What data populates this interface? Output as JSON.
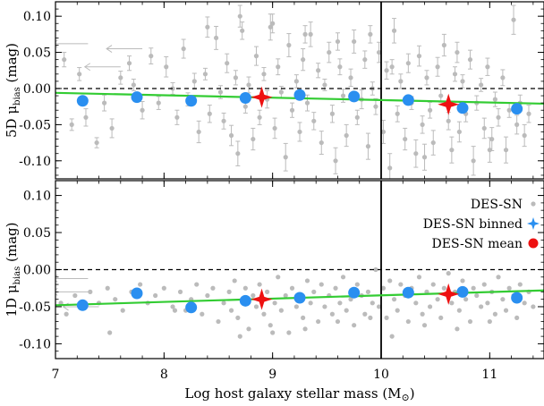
{
  "chart_data": {
    "type": "scatter",
    "xlabel": "Log host galaxy stellar mass (M",
    "xlabel_symbol": "⊙",
    "xlabel_close": ")",
    "xlim": [
      7,
      11.5
    ],
    "xticks": [
      7,
      8,
      9,
      10,
      11
    ],
    "mass_step": 10,
    "colors": {
      "points": "#bbbbbb",
      "binned": "#2a8ff0",
      "mean": "#ee1111",
      "fit": "#33cc33"
    },
    "legend": {
      "location": "right",
      "entries": [
        {
          "label": "DES-SN",
          "marker": "dot"
        },
        {
          "label": "DES-SN binned",
          "marker": "star4-blue"
        },
        {
          "label": "DES-SN mean",
          "marker": "circle-red"
        }
      ]
    },
    "panels": [
      {
        "id": "5D",
        "ylabel_main": "5D μ",
        "ylabel_sub": "bias",
        "ylabel_unit": " (mag)",
        "ylim": [
          -0.125,
          0.12
        ],
        "yticks": [
          0.1,
          0.05,
          0.0,
          -0.05,
          -0.1
        ],
        "ytick_labels": [
          "0.10",
          "0.05",
          "0.00",
          "-0.05",
          "-0.10"
        ],
        "fit_line": {
          "x": [
            7,
            11.5
          ],
          "y": [
            -0.006,
            -0.021
          ]
        },
        "binned": {
          "x": [
            7.25,
            7.75,
            8.25,
            8.75,
            9.25,
            9.75,
            10.25,
            10.75,
            11.25
          ],
          "y": [
            -0.017,
            -0.012,
            -0.017,
            -0.013,
            -0.009,
            -0.011,
            -0.016,
            -0.027,
            -0.028
          ]
        },
        "mean": {
          "x": [
            8.9,
            10.62
          ],
          "y": [
            -0.012,
            -0.022
          ]
        },
        "scatter": {
          "x": [
            7.08,
            7.15,
            7.22,
            7.28,
            7.38,
            7.45,
            7.52,
            7.6,
            7.68,
            7.72,
            7.8,
            7.88,
            7.95,
            8.02,
            8.08,
            8.12,
            8.18,
            8.22,
            8.28,
            8.32,
            8.38,
            8.42,
            8.48,
            8.52,
            8.55,
            8.58,
            8.62,
            8.66,
            8.68,
            8.72,
            8.75,
            8.78,
            8.82,
            8.85,
            8.88,
            8.92,
            8.95,
            8.98,
            9.02,
            9.05,
            9.08,
            9.12,
            9.15,
            9.18,
            9.22,
            9.25,
            9.28,
            9.32,
            9.35,
            9.38,
            9.42,
            9.45,
            9.48,
            9.52,
            9.55,
            9.58,
            9.62,
            9.65,
            9.68,
            9.72,
            9.75,
            9.78,
            9.82,
            9.85,
            9.88,
            9.92,
            9.95,
            9.98,
            10.02,
            10.05,
            10.08,
            10.12,
            10.15,
            10.18,
            10.22,
            10.25,
            10.28,
            10.32,
            10.35,
            10.38,
            10.42,
            10.45,
            10.48,
            10.52,
            10.55,
            10.58,
            10.62,
            10.65,
            10.68,
            10.72,
            10.75,
            10.78,
            10.82,
            10.85,
            10.88,
            10.92,
            10.95,
            10.98,
            11.02,
            11.05,
            11.08,
            11.12,
            11.15,
            11.18,
            11.22,
            11.25,
            11.28,
            11.32,
            11.36,
            8.4,
            8.7,
            9.0,
            9.3,
            9.6,
            9.9,
            10.1,
            10.4,
            10.7,
            11.0
          ],
          "y": [
            0.04,
            -0.05,
            0.02,
            -0.04,
            -0.075,
            -0.02,
            -0.055,
            0.015,
            0.035,
            0.005,
            -0.03,
            0.045,
            -0.02,
            0.03,
            0.0,
            -0.04,
            0.055,
            -0.015,
            0.01,
            -0.06,
            0.02,
            -0.035,
            0.07,
            -0.005,
            -0.045,
            0.035,
            -0.065,
            0.015,
            -0.09,
            0.08,
            -0.025,
            0.005,
            -0.07,
            0.045,
            -0.04,
            0.02,
            -0.015,
            0.085,
            -0.055,
            0.03,
            -0.005,
            -0.095,
            0.06,
            -0.03,
            0.01,
            -0.06,
            0.04,
            -0.02,
            0.075,
            -0.045,
            0.025,
            -0.075,
            0.005,
            0.05,
            -0.035,
            -0.1,
            0.03,
            -0.01,
            -0.065,
            0.015,
            0.065,
            -0.04,
            -0.015,
            0.04,
            -0.08,
            0.0,
            -0.025,
            0.05,
            -0.06,
            0.025,
            -0.11,
            0.08,
            -0.035,
            0.01,
            -0.07,
            0.035,
            -0.02,
            -0.09,
            0.045,
            -0.05,
            0.015,
            -0.03,
            -0.075,
            0.03,
            -0.01,
            0.06,
            -0.045,
            -0.085,
            0.02,
            -0.06,
            0.01,
            -0.035,
            0.04,
            -0.1,
            -0.02,
            0.005,
            -0.055,
            0.03,
            -0.07,
            -0.015,
            -0.04,
            0.015,
            -0.085,
            -0.03,
            0.095,
            -0.05,
            -0.02,
            -0.065,
            -0.035,
            0.085,
            0.1,
            0.09,
            0.075,
            0.065,
            0.075,
            0.03,
            -0.095,
            0.05,
            -0.085
          ],
          "err": [
            0.01,
            0.008,
            0.009,
            0.012,
            0.007,
            0.011,
            0.013,
            0.009,
            0.01,
            0.008,
            0.012,
            0.011,
            0.009,
            0.014,
            0.008,
            0.01,
            0.013,
            0.009,
            0.011,
            0.015,
            0.008,
            0.012,
            0.016,
            0.009,
            0.011,
            0.013,
            0.014,
            0.01,
            0.017,
            0.012,
            0.009,
            0.011,
            0.015,
            0.013,
            0.01,
            0.009,
            0.012,
            0.018,
            0.014,
            0.011,
            0.008,
            0.019,
            0.016,
            0.01,
            0.009,
            0.013,
            0.015,
            0.011,
            0.017,
            0.012,
            0.01,
            0.016,
            0.008,
            0.014,
            0.012,
            0.018,
            0.011,
            0.009,
            0.015,
            0.012,
            0.016,
            0.01,
            0.013,
            0.012,
            0.018,
            0.009,
            0.011,
            0.014,
            0.016,
            0.012,
            0.02,
            0.017,
            0.011,
            0.01,
            0.015,
            0.013,
            0.009,
            0.019,
            0.014,
            0.012,
            0.01,
            0.011,
            0.017,
            0.013,
            0.009,
            0.015,
            0.012,
            0.018,
            0.01,
            0.014,
            0.009,
            0.011,
            0.013,
            0.02,
            0.01,
            0.009,
            0.014,
            0.012,
            0.016,
            0.01,
            0.012,
            0.011,
            0.018,
            0.01,
            0.02,
            0.013,
            0.011,
            0.015,
            0.012,
            0.014,
            0.015,
            0.013,
            0.012,
            0.012,
            0.012,
            0.01,
            0.018,
            0.014,
            0.017
          ],
          "upper_limits": [
            {
              "x": 7.8,
              "y": 0.055
            },
            {
              "x": 7.6,
              "y": 0.03
            },
            {
              "x": 7.3,
              "y": 0.062
            }
          ]
        }
      },
      {
        "id": "1D",
        "ylabel_main": "1D μ",
        "ylabel_sub": "bias",
        "ylabel_unit": " (mag)",
        "ylim": [
          -0.12,
          0.12
        ],
        "yticks": [
          0.1,
          0.05,
          0.0,
          -0.05,
          -0.1
        ],
        "ytick_labels": [
          "0.10",
          "0.05",
          "0.00",
          "-0.05",
          "-0.10"
        ],
        "fit_line": {
          "x": [
            7,
            11.5
          ],
          "y": [
            -0.048,
            -0.028
          ]
        },
        "binned": {
          "x": [
            7.25,
            7.75,
            8.25,
            8.75,
            9.25,
            9.75,
            10.25,
            10.75,
            11.25
          ],
          "y": [
            -0.048,
            -0.032,
            -0.051,
            -0.042,
            -0.038,
            -0.031,
            -0.031,
            -0.03,
            -0.038
          ]
        },
        "mean": {
          "x": [
            8.9,
            10.62
          ],
          "y": [
            -0.04,
            -0.033
          ]
        },
        "scatter": {
          "x": [
            7.05,
            7.1,
            7.18,
            7.25,
            7.32,
            7.4,
            7.48,
            7.55,
            7.62,
            7.7,
            7.78,
            7.85,
            7.92,
            8.0,
            8.08,
            8.15,
            8.2,
            8.25,
            8.3,
            8.35,
            8.4,
            8.45,
            8.5,
            8.55,
            8.6,
            8.62,
            8.65,
            8.68,
            8.72,
            8.75,
            8.78,
            8.82,
            8.85,
            8.88,
            8.92,
            8.95,
            8.98,
            9.02,
            9.05,
            9.08,
            9.12,
            9.15,
            9.18,
            9.22,
            9.25,
            9.28,
            9.32,
            9.35,
            9.38,
            9.42,
            9.45,
            9.48,
            9.52,
            9.55,
            9.58,
            9.62,
            9.65,
            9.68,
            9.72,
            9.75,
            9.78,
            9.82,
            9.85,
            9.88,
            9.92,
            9.95,
            9.98,
            10.02,
            10.05,
            10.08,
            10.12,
            10.15,
            10.18,
            10.22,
            10.25,
            10.28,
            10.32,
            10.35,
            10.38,
            10.42,
            10.45,
            10.48,
            10.52,
            10.55,
            10.58,
            10.62,
            10.65,
            10.68,
            10.72,
            10.75,
            10.78,
            10.82,
            10.85,
            10.88,
            10.92,
            10.95,
            10.98,
            11.02,
            11.05,
            11.08,
            11.12,
            11.15,
            11.18,
            11.22,
            11.25,
            11.28,
            11.32,
            11.36,
            11.4,
            8.7,
            9.0,
            9.3,
            9.6,
            9.9,
            10.1,
            10.4,
            10.7,
            11.0,
            7.5,
            8.1
          ],
          "y": [
            -0.045,
            -0.06,
            -0.035,
            -0.05,
            -0.03,
            -0.045,
            -0.025,
            -0.04,
            -0.055,
            -0.03,
            -0.02,
            -0.045,
            -0.035,
            -0.025,
            -0.05,
            -0.03,
            -0.055,
            -0.04,
            -0.02,
            -0.06,
            -0.035,
            -0.025,
            -0.07,
            -0.045,
            -0.03,
            -0.055,
            -0.015,
            -0.065,
            -0.04,
            -0.025,
            -0.08,
            -0.035,
            -0.05,
            -0.02,
            -0.06,
            -0.03,
            -0.075,
            -0.045,
            -0.01,
            -0.055,
            -0.035,
            -0.085,
            -0.025,
            -0.05,
            -0.04,
            -0.065,
            -0.015,
            -0.045,
            -0.03,
            -0.07,
            -0.02,
            -0.05,
            -0.035,
            -0.06,
            -0.025,
            -0.045,
            -0.01,
            -0.055,
            -0.04,
            -0.075,
            -0.02,
            -0.035,
            -0.06,
            -0.03,
            -0.045,
            0.0,
            -0.05,
            -0.025,
            -0.065,
            -0.015,
            -0.04,
            -0.055,
            -0.02,
            -0.035,
            -0.07,
            -0.025,
            -0.045,
            -0.01,
            -0.06,
            -0.03,
            -0.05,
            -0.02,
            -0.04,
            -0.065,
            -0.025,
            -0.005,
            -0.045,
            -0.03,
            -0.055,
            -0.015,
            -0.04,
            -0.07,
            -0.025,
            -0.035,
            -0.05,
            -0.02,
            -0.045,
            -0.03,
            -0.06,
            -0.01,
            -0.04,
            -0.055,
            -0.025,
            -0.035,
            -0.065,
            -0.02,
            -0.045,
            -0.03,
            -0.05,
            -0.09,
            -0.085,
            -0.08,
            -0.07,
            -0.065,
            -0.09,
            -0.075,
            -0.08,
            -0.07,
            -0.085,
            -0.055
          ],
          "upper_limits": [
            {
              "x": 7.3,
              "y": -0.012
            },
            {
              "x": 7.3,
              "y": -0.03
            },
            {
              "x": 7.4,
              "y": -0.05
            }
          ]
        }
      }
    ]
  }
}
